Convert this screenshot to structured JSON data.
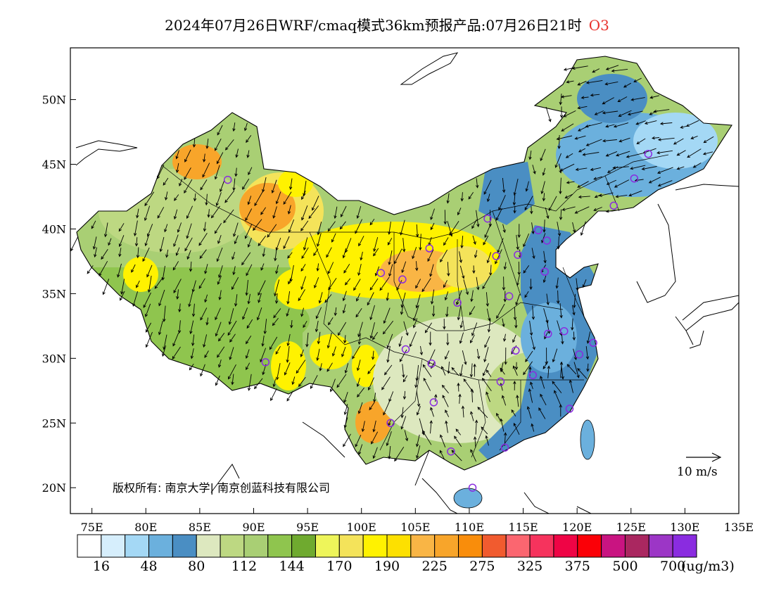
{
  "title": {
    "main": "2024年07月26日WRF/cmaq模式36km预报产品:07月26日21时",
    "species": "O3"
  },
  "copyright": "版权所有: 南京大学| 南京创蓝科技有限公司",
  "wind_reference": {
    "label": "10  m/s",
    "speed": 10,
    "unit": "m/s"
  },
  "axes": {
    "lon_ticks": [
      "75E",
      "80E",
      "85E",
      "90E",
      "95E",
      "100E",
      "105E",
      "110E",
      "115E",
      "120E",
      "125E",
      "130E",
      "135E"
    ],
    "lon_values": [
      75,
      80,
      85,
      90,
      95,
      100,
      105,
      110,
      115,
      120,
      125,
      130,
      135
    ],
    "lat_ticks": [
      "20N",
      "25N",
      "30N",
      "35N",
      "40N",
      "45N",
      "50N"
    ],
    "lat_values": [
      20,
      25,
      30,
      35,
      40,
      45,
      50
    ],
    "lon_range": [
      73,
      135
    ],
    "lat_range": [
      18,
      54
    ]
  },
  "colorbar": {
    "colors": [
      "#ffffff",
      "#d6eefc",
      "#a4d8f5",
      "#6bb0dd",
      "#4a8ec3",
      "#dde8bf",
      "#bdd882",
      "#a9cf74",
      "#8fc54e",
      "#6faa2f",
      "#eef55a",
      "#f4e35a",
      "#fff200",
      "#fde000",
      "#f9b545",
      "#f8a52a",
      "#f98d0b",
      "#f15b2f",
      "#fb6670",
      "#f6335d",
      "#ef0445",
      "#fb0007",
      "#c91481",
      "#aa2760",
      "#9c36c6",
      "#8a2ce0"
    ],
    "labels": [
      "16",
      "48",
      "80",
      "112",
      "144",
      "170",
      "190",
      "225",
      "275",
      "325",
      "375",
      "500",
      "700"
    ],
    "unit": "(ug/m3)"
  },
  "cities": [
    {
      "name": "",
      "lon": 87.6,
      "lat": 43.8
    },
    {
      "name": "",
      "lon": 91.1,
      "lat": 29.7
    },
    {
      "name": "",
      "lon": 101.8,
      "lat": 36.6
    },
    {
      "name": "",
      "lon": 103.8,
      "lat": 36.1
    },
    {
      "name": "",
      "lon": 106.3,
      "lat": 38.5
    },
    {
      "name": "",
      "lon": 108.9,
      "lat": 34.3
    },
    {
      "name": "",
      "lon": 111.7,
      "lat": 40.8
    },
    {
      "name": "",
      "lon": 112.5,
      "lat": 37.9
    },
    {
      "name": "",
      "lon": 114.5,
      "lat": 38.0
    },
    {
      "name": "",
      "lon": 116.4,
      "lat": 39.9
    },
    {
      "name": "",
      "lon": 117.2,
      "lat": 39.1
    },
    {
      "name": "",
      "lon": 117.0,
      "lat": 36.7
    },
    {
      "name": "",
      "lon": 113.7,
      "lat": 34.8
    },
    {
      "name": "",
      "lon": 123.4,
      "lat": 41.8
    },
    {
      "name": "",
      "lon": 125.3,
      "lat": 43.9
    },
    {
      "name": "",
      "lon": 126.6,
      "lat": 45.8
    },
    {
      "name": "",
      "lon": 104.1,
      "lat": 30.7
    },
    {
      "name": "",
      "lon": 106.5,
      "lat": 29.6
    },
    {
      "name": "",
      "lon": 106.7,
      "lat": 26.6
    },
    {
      "name": "",
      "lon": 102.7,
      "lat": 25.0
    },
    {
      "name": "",
      "lon": 108.3,
      "lat": 22.8
    },
    {
      "name": "",
      "lon": 113.3,
      "lat": 23.1
    },
    {
      "name": "",
      "lon": 110.3,
      "lat": 20.0
    },
    {
      "name": "",
      "lon": 112.9,
      "lat": 28.2
    },
    {
      "name": "",
      "lon": 114.3,
      "lat": 30.6
    },
    {
      "name": "",
      "lon": 115.9,
      "lat": 28.7
    },
    {
      "name": "",
      "lon": 117.3,
      "lat": 31.9
    },
    {
      "name": "",
      "lon": 118.8,
      "lat": 32.1
    },
    {
      "name": "",
      "lon": 120.2,
      "lat": 30.3
    },
    {
      "name": "",
      "lon": 121.5,
      "lat": 31.2
    },
    {
      "name": "",
      "lon": 119.3,
      "lat": 26.1
    }
  ],
  "regions": [
    {
      "zone": "west",
      "concentration": "112-144",
      "color": "#a9cf74"
    },
    {
      "zone": "northwest-basin",
      "concentration": "190-225",
      "color": "#f8a52a"
    },
    {
      "zone": "loess-plateau",
      "concentration": "170-190",
      "color": "#fff200"
    },
    {
      "zone": "northeast",
      "concentration": "48-80",
      "color": "#6bb0dd"
    },
    {
      "zone": "east-coast",
      "concentration": "48-80",
      "color": "#4a8ec3"
    },
    {
      "zone": "south",
      "concentration": "112-144",
      "color": "#bdd882"
    }
  ]
}
